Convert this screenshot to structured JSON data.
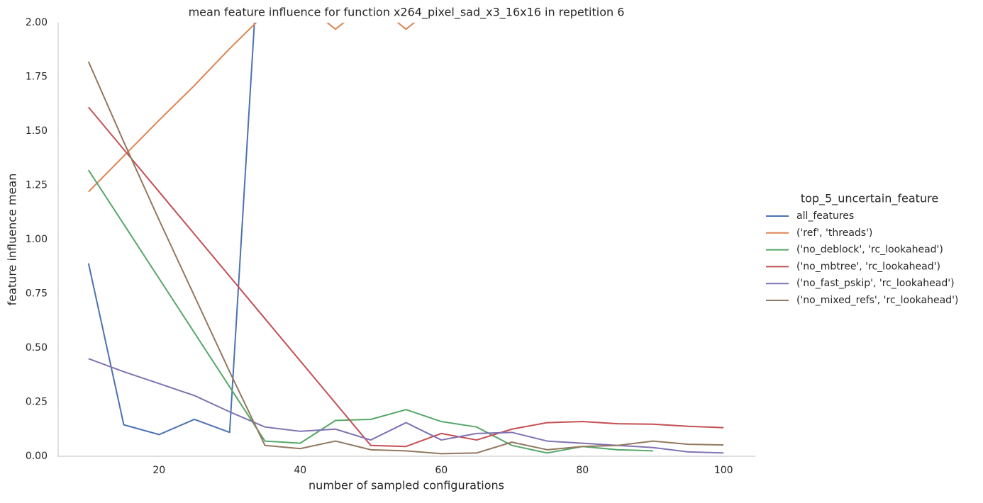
{
  "chart_data": {
    "type": "line",
    "title": "mean feature influence for function x264_pixel_sad_x3_16x16 in repetition 6",
    "x_label": "number of sampled configurations",
    "y_label": "feature influence mean",
    "legend_title": "top_5_uncertain_feature",
    "legend_position": "right",
    "grid": false,
    "x": [
      10,
      15,
      20,
      25,
      30,
      35,
      40,
      45,
      50,
      55,
      60,
      65,
      70,
      75,
      80,
      85,
      90,
      95,
      100
    ],
    "series": [
      {
        "name": "all_features",
        "color": "#4c72b0",
        "values": [
          0.89,
          0.145,
          0.1,
          0.17,
          0.11,
          2.8,
          null,
          null,
          null,
          null,
          null,
          null,
          null,
          null,
          null,
          null,
          null,
          null,
          null
        ]
      },
      {
        "name": "('ref', 'threads')",
        "color": "#dd8452",
        "values": [
          1.22,
          1.385,
          1.55,
          1.71,
          1.88,
          2.04,
          2.1,
          1.97,
          2.1,
          1.97,
          2.1,
          null,
          null,
          null,
          null,
          null,
          null,
          null,
          null
        ]
      },
      {
        "name": "('no_deblock', 'rc_lookahead')",
        "color": "#55a868",
        "values": [
          1.32,
          1.07,
          0.82,
          0.57,
          0.32,
          0.07,
          0.06,
          0.165,
          0.17,
          0.215,
          0.16,
          0.135,
          0.05,
          0.015,
          0.045,
          0.03,
          0.025,
          null,
          null
        ]
      },
      {
        "name": "('no_mbtree', 'rc_lookahead')",
        "color": "#c44e52",
        "values": [
          1.61,
          1.415,
          1.22,
          1.025,
          0.83,
          0.635,
          0.44,
          0.245,
          0.05,
          0.045,
          0.105,
          0.075,
          0.125,
          0.155,
          0.16,
          0.15,
          0.148,
          0.138,
          0.132
        ]
      },
      {
        "name": "('no_fast_pskip', 'rc_lookahead')",
        "color": "#8172b3",
        "values": [
          0.45,
          0.39,
          0.335,
          0.28,
          0.205,
          0.135,
          0.115,
          0.125,
          0.075,
          0.155,
          0.075,
          0.105,
          0.11,
          0.07,
          0.06,
          0.05,
          0.04,
          0.02,
          0.015
        ]
      },
      {
        "name": "('no_mixed_refs', 'rc_lookahead')",
        "color": "#937860",
        "values": [
          1.82,
          1.45,
          1.09,
          0.74,
          0.39,
          0.05,
          0.035,
          0.07,
          0.03,
          0.025,
          0.012,
          0.015,
          0.065,
          0.03,
          0.045,
          0.05,
          0.07,
          0.055,
          0.052
        ]
      }
    ],
    "xlim": [
      5.7,
      104.5
    ],
    "ylim": [
      0,
      2
    ],
    "xticks": [
      20,
      40,
      60,
      80,
      100
    ],
    "yticks": [
      {
        "value": 0,
        "label": "0.00"
      },
      {
        "value": 0.25,
        "label": "0.25"
      },
      {
        "value": 0.5,
        "label": "0.50"
      },
      {
        "value": 0.75,
        "label": "0.75"
      },
      {
        "value": 1,
        "label": "1.00"
      },
      {
        "value": 1.25,
        "label": "1.25"
      },
      {
        "value": 1.5,
        "label": "1.50"
      },
      {
        "value": 1.75,
        "label": "1.75"
      },
      {
        "value": 2,
        "label": "2.00"
      }
    ]
  }
}
